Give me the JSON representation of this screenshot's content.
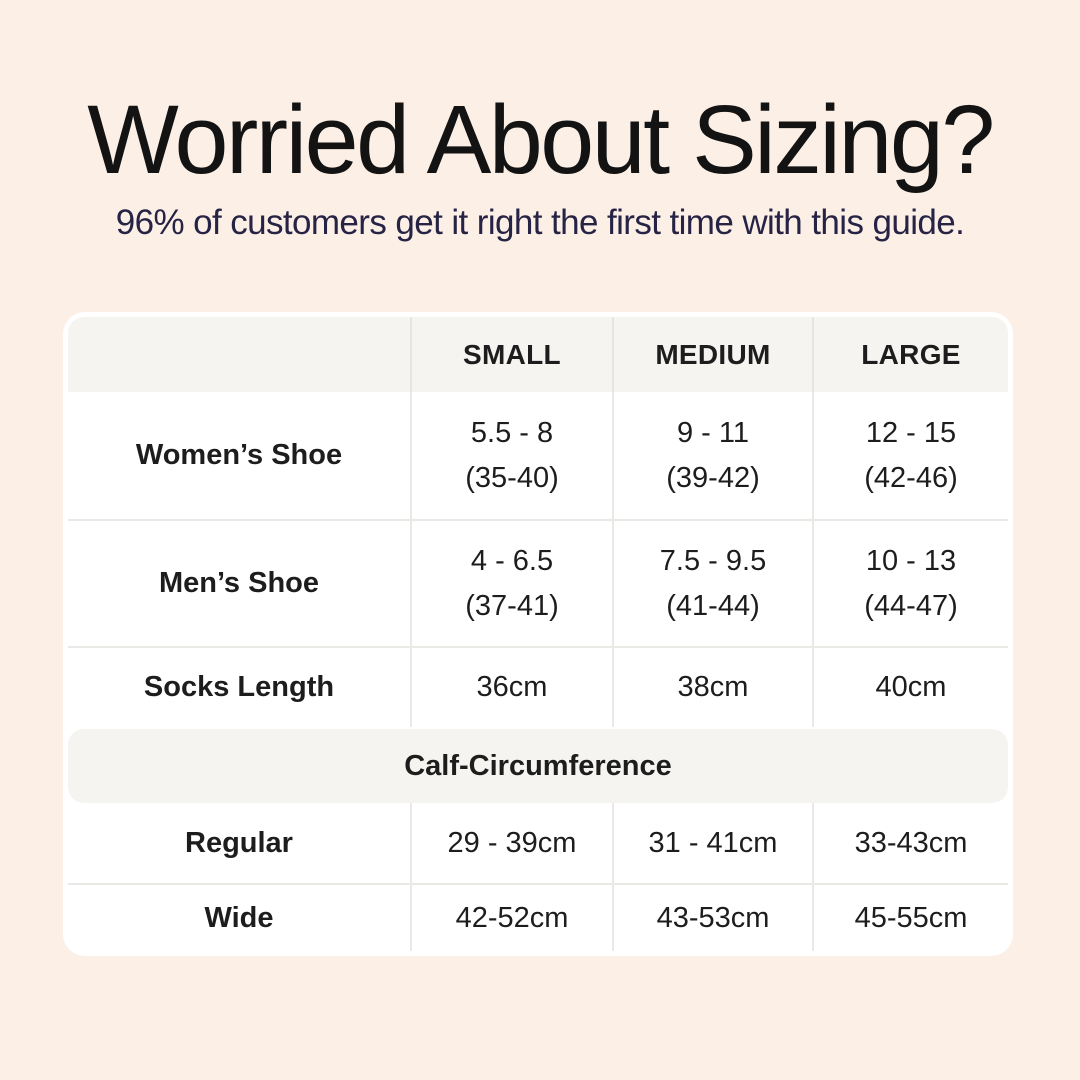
{
  "colors": {
    "bg": "#fcefe6",
    "card": "#ffffff",
    "band": "#f5f4f1",
    "divider": "#ebe9e5",
    "band-divider": "#e7e5e1",
    "title": "#131313",
    "subtitle": "#272345",
    "text": "#1d1d1d"
  },
  "header": {
    "title": "Worried About Sizing?",
    "subtitle": "96% of customers get it right the first time with this guide."
  },
  "table": {
    "columns": [
      "SMALL",
      "MEDIUM",
      "LARGE"
    ],
    "rows": [
      {
        "label": "Women’s Shoe",
        "small_1": "5.5 - 8",
        "small_2": "(35-40)",
        "medium_1": "9 - 11",
        "medium_2": "(39-42)",
        "large_1": "12 - 15",
        "large_2": "(42-46)"
      },
      {
        "label": "Men’s Shoe",
        "small_1": "4 - 6.5",
        "small_2": "(37-41)",
        "medium_1": "7.5 - 9.5",
        "medium_2": "(41-44)",
        "large_1": "10 - 13",
        "large_2": "(44-47)"
      },
      {
        "label": "Socks Length",
        "small": "36cm",
        "medium": "38cm",
        "large": "40cm"
      }
    ],
    "section_header": "Calf-Circumference",
    "calf_rows": [
      {
        "label": "Regular",
        "small": "29 - 39cm",
        "medium": "31 - 41cm",
        "large": "33-43cm"
      },
      {
        "label": "Wide",
        "small": "42-52cm",
        "medium": "43-53cm",
        "large": "45-55cm"
      }
    ]
  },
  "chart_data": {
    "type": "table",
    "title": "Worried About Sizing?",
    "subtitle": "96% of customers get it right the first time with this guide.",
    "columns": [
      "",
      "SMALL",
      "MEDIUM",
      "LARGE"
    ],
    "rows": [
      [
        "Women’s Shoe",
        "5.5 - 8 (35-40)",
        "9 - 11 (39-42)",
        "12 - 15 (42-46)"
      ],
      [
        "Men’s Shoe",
        "4 - 6.5 (37-41)",
        "7.5 - 9.5 (41-44)",
        "10 - 13 (44-47)"
      ],
      [
        "Socks Length",
        "36cm",
        "38cm",
        "40cm"
      ],
      [
        "Calf-Circumference",
        "",
        "",
        ""
      ],
      [
        "Regular",
        "29 - 39cm",
        "31 - 41cm",
        "33-43cm"
      ],
      [
        "Wide",
        "42-52cm",
        "43-53cm",
        "45-55cm"
      ]
    ],
    "layout_hints": {
      "section_row_index": 3,
      "section_style": "full-width merged gray band, centered bold text",
      "header_style": "gray band, bold uppercase",
      "grid": "light gray vertical and horizontal dividers, rounded white card on peach background"
    }
  }
}
